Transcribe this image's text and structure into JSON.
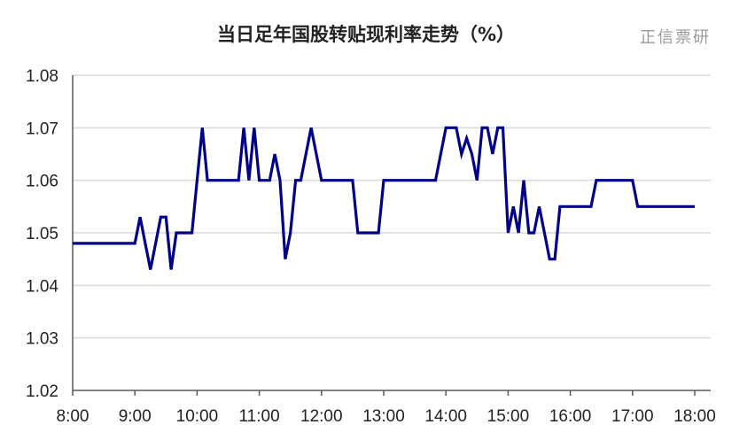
{
  "chart_data": {
    "type": "line",
    "title": "当日足年国股转贴现利率走势（%）",
    "watermark": "正信票研",
    "xlabel": "",
    "ylabel": "",
    "x_ticks": [
      "8:00",
      "9:00",
      "10:00",
      "11:00",
      "12:00",
      "13:00",
      "14:00",
      "15:00",
      "16:00",
      "17:00",
      "18:00"
    ],
    "y_ticks": [
      "1.02",
      "1.03",
      "1.04",
      "1.05",
      "1.06",
      "1.07",
      "1.08"
    ],
    "ylim": [
      1.02,
      1.08
    ],
    "grid": true,
    "line_color": "#00008b",
    "series": [
      {
        "x": [
          "8:00",
          "8:10",
          "8:20",
          "8:30",
          "8:40",
          "8:50",
          "9:00",
          "9:05",
          "9:10",
          "9:15",
          "9:20",
          "9:25",
          "9:30",
          "9:35",
          "9:40",
          "9:45",
          "9:50",
          "9:55",
          "10:00",
          "10:05",
          "10:10",
          "10:20",
          "10:30",
          "10:40",
          "10:45",
          "10:50",
          "10:55",
          "11:00",
          "11:05",
          "11:10",
          "11:15",
          "11:20",
          "11:25",
          "11:30",
          "11:35",
          "11:40",
          "11:50",
          "12:00",
          "12:10",
          "12:20",
          "12:30",
          "12:35",
          "12:45",
          "12:55",
          "13:00",
          "13:10",
          "13:20",
          "13:30",
          "13:40",
          "13:50",
          "14:00",
          "14:10",
          "14:15",
          "14:20",
          "14:25",
          "14:30",
          "14:35",
          "14:40",
          "14:45",
          "14:50",
          "14:55",
          "15:00",
          "15:05",
          "15:10",
          "15:15",
          "15:20",
          "15:25",
          "15:30",
          "15:35",
          "15:40",
          "15:45",
          "15:50",
          "16:00",
          "16:10",
          "16:20",
          "16:25",
          "16:30",
          "16:40",
          "16:50",
          "17:00",
          "17:05",
          "17:10",
          "17:20",
          "17:30",
          "17:40",
          "17:50",
          "18:00"
        ],
        "y": [
          1.048,
          1.048,
          1.048,
          1.048,
          1.048,
          1.048,
          1.048,
          1.053,
          1.048,
          1.043,
          1.048,
          1.053,
          1.053,
          1.043,
          1.05,
          1.05,
          1.05,
          1.05,
          1.06,
          1.07,
          1.06,
          1.06,
          1.06,
          1.06,
          1.07,
          1.06,
          1.07,
          1.06,
          1.06,
          1.06,
          1.065,
          1.06,
          1.045,
          1.05,
          1.06,
          1.06,
          1.07,
          1.06,
          1.06,
          1.06,
          1.06,
          1.05,
          1.05,
          1.05,
          1.06,
          1.06,
          1.06,
          1.06,
          1.06,
          1.06,
          1.07,
          1.07,
          1.065,
          1.068,
          1.065,
          1.06,
          1.07,
          1.07,
          1.065,
          1.07,
          1.07,
          1.05,
          1.055,
          1.05,
          1.06,
          1.05,
          1.05,
          1.055,
          1.05,
          1.045,
          1.045,
          1.055,
          1.055,
          1.055,
          1.055,
          1.06,
          1.06,
          1.06,
          1.06,
          1.06,
          1.055,
          1.055,
          1.055,
          1.055,
          1.055,
          1.055,
          1.055
        ]
      }
    ]
  }
}
